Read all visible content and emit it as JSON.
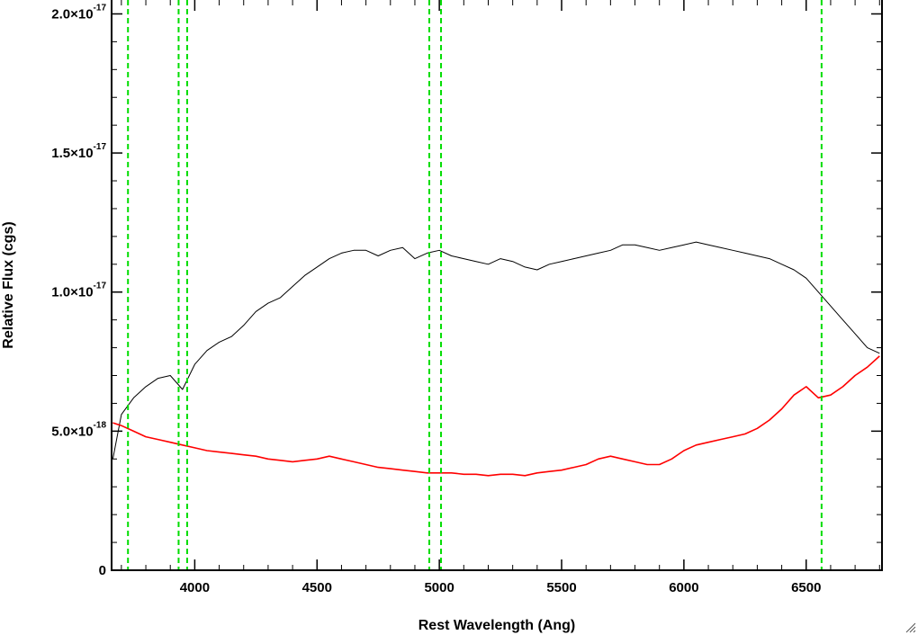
{
  "chart_data": {
    "type": "line",
    "xlabel": "Rest Wavelength (Ang)",
    "ylabel": "Relative Flux (cgs)",
    "xlim": [
      3660,
      6810
    ],
    "ylim": [
      0,
      2.05e-17
    ],
    "x_ticks": [
      4000,
      4500,
      5000,
      5500,
      6000,
      6500
    ],
    "x_tick_labels": [
      "4000",
      "4500",
      "5000",
      "5500",
      "6000",
      "6500"
    ],
    "y_ticks": [
      {
        "value": 0,
        "mant": "0",
        "exp": ""
      },
      {
        "value": 5e-18,
        "mant": "5.0×10",
        "exp": "-18"
      },
      {
        "value": 1e-17,
        "mant": "1.0×10",
        "exp": "-17"
      },
      {
        "value": 1.5e-17,
        "mant": "1.5×10",
        "exp": "-17"
      },
      {
        "value": 2e-17,
        "mant": "2.0×10",
        "exp": "-17"
      }
    ],
    "grid": false,
    "series": [
      {
        "color": "#000000",
        "style": "solid",
        "x": [
          3665,
          3700,
          3750,
          3800,
          3850,
          3900,
          3950,
          4000,
          4050,
          4100,
          4150,
          4200,
          4250,
          4300,
          4350,
          4400,
          4450,
          4500,
          4550,
          4600,
          4650,
          4700,
          4750,
          4800,
          4850,
          4900,
          4950,
          5000,
          5050,
          5100,
          5150,
          5200,
          5250,
          5300,
          5350,
          5400,
          5450,
          5500,
          5550,
          5600,
          5650,
          5700,
          5750,
          5800,
          5850,
          5900,
          5950,
          6000,
          6050,
          6100,
          6150,
          6200,
          6250,
          6300,
          6350,
          6400,
          6450,
          6500,
          6550,
          6600,
          6650,
          6700,
          6750,
          6800
        ],
        "y": [
          4e-18,
          5.6e-18,
          6.2e-18,
          6.6e-18,
          6.9e-18,
          7e-18,
          6.5e-18,
          7.4e-18,
          7.9e-18,
          8.2e-18,
          8.4e-18,
          8.8e-18,
          9.3e-18,
          9.6e-18,
          9.8e-18,
          1.02e-17,
          1.06e-17,
          1.09e-17,
          1.12e-17,
          1.14e-17,
          1.15e-17,
          1.15e-17,
          1.13e-17,
          1.15e-17,
          1.16e-17,
          1.12e-17,
          1.14e-17,
          1.15e-17,
          1.13e-17,
          1.12e-17,
          1.11e-17,
          1.1e-17,
          1.12e-17,
          1.11e-17,
          1.09e-17,
          1.08e-17,
          1.1e-17,
          1.11e-17,
          1.12e-17,
          1.13e-17,
          1.14e-17,
          1.15e-17,
          1.17e-17,
          1.17e-17,
          1.16e-17,
          1.15e-17,
          1.16e-17,
          1.17e-17,
          1.18e-17,
          1.17e-17,
          1.16e-17,
          1.15e-17,
          1.14e-17,
          1.13e-17,
          1.12e-17,
          1.1e-17,
          1.08e-17,
          1.05e-17,
          1e-17,
          9.5e-18,
          9e-18,
          8.5e-18,
          8e-18,
          7.8e-18
        ]
      },
      {
        "color": "#ff0000",
        "style": "solid",
        "x": [
          3665,
          3700,
          3750,
          3800,
          3850,
          3900,
          3950,
          4000,
          4050,
          4100,
          4150,
          4200,
          4250,
          4300,
          4350,
          4400,
          4450,
          4500,
          4550,
          4600,
          4650,
          4700,
          4750,
          4800,
          4850,
          4900,
          4950,
          5000,
          5050,
          5100,
          5150,
          5200,
          5250,
          5300,
          5350,
          5400,
          5450,
          5500,
          5550,
          5600,
          5650,
          5700,
          5750,
          5800,
          5850,
          5900,
          5950,
          6000,
          6050,
          6100,
          6150,
          6200,
          6250,
          6300,
          6350,
          6400,
          6450,
          6500,
          6550,
          6600,
          6650,
          6700,
          6750,
          6800
        ],
        "y": [
          5.3e-18,
          5.2e-18,
          5e-18,
          4.8e-18,
          4.7e-18,
          4.6e-18,
          4.5e-18,
          4.4e-18,
          4.3e-18,
          4.25e-18,
          4.2e-18,
          4.15e-18,
          4.1e-18,
          4e-18,
          3.95e-18,
          3.9e-18,
          3.95e-18,
          4e-18,
          4.1e-18,
          4e-18,
          3.9e-18,
          3.8e-18,
          3.7e-18,
          3.65e-18,
          3.6e-18,
          3.55e-18,
          3.5e-18,
          3.5e-18,
          3.5e-18,
          3.45e-18,
          3.45e-18,
          3.4e-18,
          3.45e-18,
          3.45e-18,
          3.4e-18,
          3.5e-18,
          3.55e-18,
          3.6e-18,
          3.7e-18,
          3.8e-18,
          4e-18,
          4.1e-18,
          4e-18,
          3.9e-18,
          3.8e-18,
          3.8e-18,
          4e-18,
          4.3e-18,
          4.5e-18,
          4.6e-18,
          4.7e-18,
          4.8e-18,
          4.9e-18,
          5.1e-18,
          5.4e-18,
          5.8e-18,
          6.3e-18,
          6.6e-18,
          6.2e-18,
          6.3e-18,
          6.6e-18,
          7e-18,
          7.3e-18,
          7.7e-18
        ]
      }
    ],
    "vertical_lines": [
      {
        "x": 3727,
        "color": "#00dd00",
        "style": "dashed"
      },
      {
        "x": 3934,
        "color": "#00dd00",
        "style": "dashed"
      },
      {
        "x": 3969,
        "color": "#00dd00",
        "style": "dashed"
      },
      {
        "x": 4959,
        "color": "#00dd00",
        "style": "dashed"
      },
      {
        "x": 5007,
        "color": "#00dd00",
        "style": "dashed"
      },
      {
        "x": 6563,
        "color": "#00dd00",
        "style": "dashed"
      }
    ]
  }
}
